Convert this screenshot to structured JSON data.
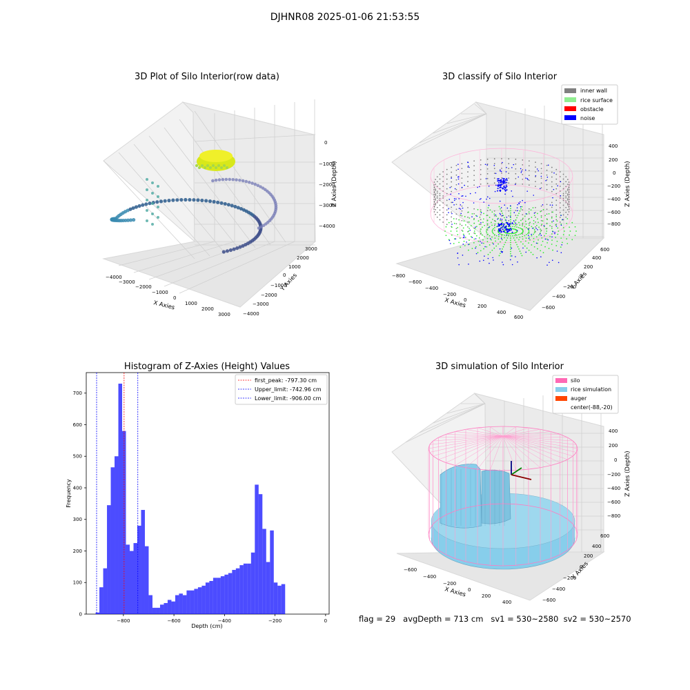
{
  "figure_title": "DJHNR08 2025-01-06 21:53:55",
  "status_line": {
    "flag": "flag = 29",
    "avg": "avgDepth = 713 cm",
    "sv1": "sv1 = 530~2580",
    "sv2": "sv2 = 530~2570"
  },
  "chart_data": [
    {
      "type": "scatter",
      "title": "3D Plot of Silo Interior(row data)",
      "xlabel": "X Axies",
      "ylabel": "Y Axies",
      "zlabel": "Z Axies (Depth)",
      "x_ticks": [
        "−4000",
        "−3000",
        "−2000",
        "−1000",
        "0",
        "1000",
        "2000",
        "3000"
      ],
      "y_ticks": [
        "−4000",
        "−3000",
        "−2000",
        "−1000",
        "0",
        "1000",
        "2000",
        "3000"
      ],
      "z_ticks": [
        "0",
        "−1000",
        "−2000",
        "−3000",
        "−4000"
      ]
    },
    {
      "type": "scatter",
      "title": "3D classify of Silo Interior",
      "xlabel": "X Axies",
      "ylabel": "Y Axies",
      "zlabel": "Z Axies (Depth)",
      "x_ticks": [
        "−800",
        "−600",
        "−400",
        "−200",
        "0",
        "200",
        "400",
        "600"
      ],
      "y_ticks": [
        "−600",
        "−400",
        "−200",
        "0",
        "200",
        "400",
        "600"
      ],
      "z_ticks": [
        "400",
        "200",
        "0",
        "−200",
        "−400",
        "−600",
        "−800"
      ],
      "legend": [
        {
          "label": "inner wall",
          "color": "#808080"
        },
        {
          "label": "rice surface",
          "color": "#90ee90"
        },
        {
          "label": "obstacle",
          "color": "#ff0000"
        },
        {
          "label": "noise",
          "color": "#0000ff"
        }
      ]
    },
    {
      "type": "bar",
      "title": "Histogram of Z-Axies (Height) Values",
      "xlabel": "Depth (cm)",
      "ylabel": "Frequency",
      "xlim": [
        -947,
        14
      ],
      "ylim": [
        0,
        765
      ],
      "x_ticks": [
        -800,
        -600,
        -400,
        -200,
        0
      ],
      "x_tick_labels": [
        "−800",
        "−600",
        "−400",
        "−200",
        "0"
      ],
      "y_ticks": [
        0,
        100,
        200,
        300,
        400,
        500,
        600,
        700
      ],
      "bin_start": -910,
      "bin_width": 15,
      "values": [
        5,
        85,
        145,
        345,
        465,
        500,
        730,
        580,
        220,
        200,
        225,
        280,
        330,
        215,
        60,
        20,
        20,
        30,
        35,
        45,
        40,
        60,
        65,
        60,
        75,
        75,
        80,
        85,
        90,
        100,
        105,
        115,
        115,
        120,
        125,
        130,
        140,
        145,
        155,
        160,
        160,
        195,
        410,
        380,
        270,
        165,
        265,
        100,
        90,
        95
      ],
      "bar_color": "#0000ff",
      "lines": [
        {
          "label": "first_peak: -797.30 cm",
          "x": -797.3,
          "color": "#ff0000"
        },
        {
          "label": "Upper_limit: -742.96 cm",
          "x": -742.96,
          "color": "#0000ff"
        },
        {
          "label": "Lower_limit: -906.00 cm",
          "x": -906.0,
          "color": "#0000ff"
        }
      ]
    },
    {
      "type": "scatter",
      "title": "3D simulation of Silo Interior",
      "xlabel": "X Axies",
      "ylabel": "Y Axies",
      "zlabel": "Z Axies (Depth)",
      "x_ticks": [
        "−600",
        "−400",
        "−200",
        "0",
        "200",
        "400"
      ],
      "y_ticks": [
        "−600",
        "−400",
        "−200",
        "0",
        "200",
        "400",
        "600"
      ],
      "z_ticks": [
        "400",
        "200",
        "0",
        "−200",
        "−400",
        "−600",
        "−800"
      ],
      "legend": [
        {
          "label": "silo",
          "color": "#ff69b4"
        },
        {
          "label": "rice simulation",
          "color": "#87ceeb"
        },
        {
          "label": "auger",
          "color": "#ff4500"
        },
        {
          "label": "center(-88,-20)",
          "color": ""
        }
      ]
    }
  ]
}
